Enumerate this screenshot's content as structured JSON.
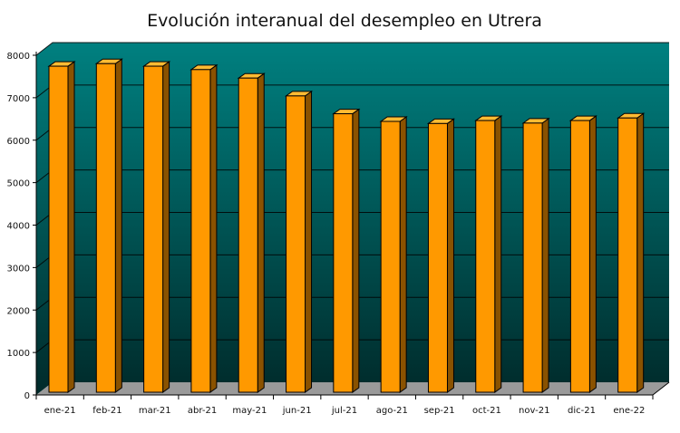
{
  "chart_data": {
    "type": "bar",
    "title": "Evolución interanual del desempleo en Utrera",
    "xlabel": "",
    "ylabel": "",
    "categories": [
      "ene-21",
      "feb-21",
      "mar-21",
      "abr-21",
      "may-21",
      "jun-21",
      "jul-21",
      "ago-21",
      "sep-21",
      "oct-21",
      "nov-21",
      "dic-21",
      "ene-22"
    ],
    "values": [
      7700,
      7760,
      7700,
      7620,
      7420,
      7000,
      6580,
      6400,
      6350,
      6420,
      6360,
      6420,
      6480
    ],
    "ylim": [
      0,
      8000
    ],
    "yticks": [
      0,
      1000,
      2000,
      3000,
      4000,
      5000,
      6000,
      7000,
      8000
    ],
    "grid": true,
    "style": "3d-bars",
    "colors": {
      "bar_front": "#ff9900",
      "bar_side": "#8a5200",
      "bar_top": "#ffbb33",
      "wall_top": "#008080",
      "wall_bottom": "#002a2a",
      "floor": "#9a9a9a"
    }
  }
}
